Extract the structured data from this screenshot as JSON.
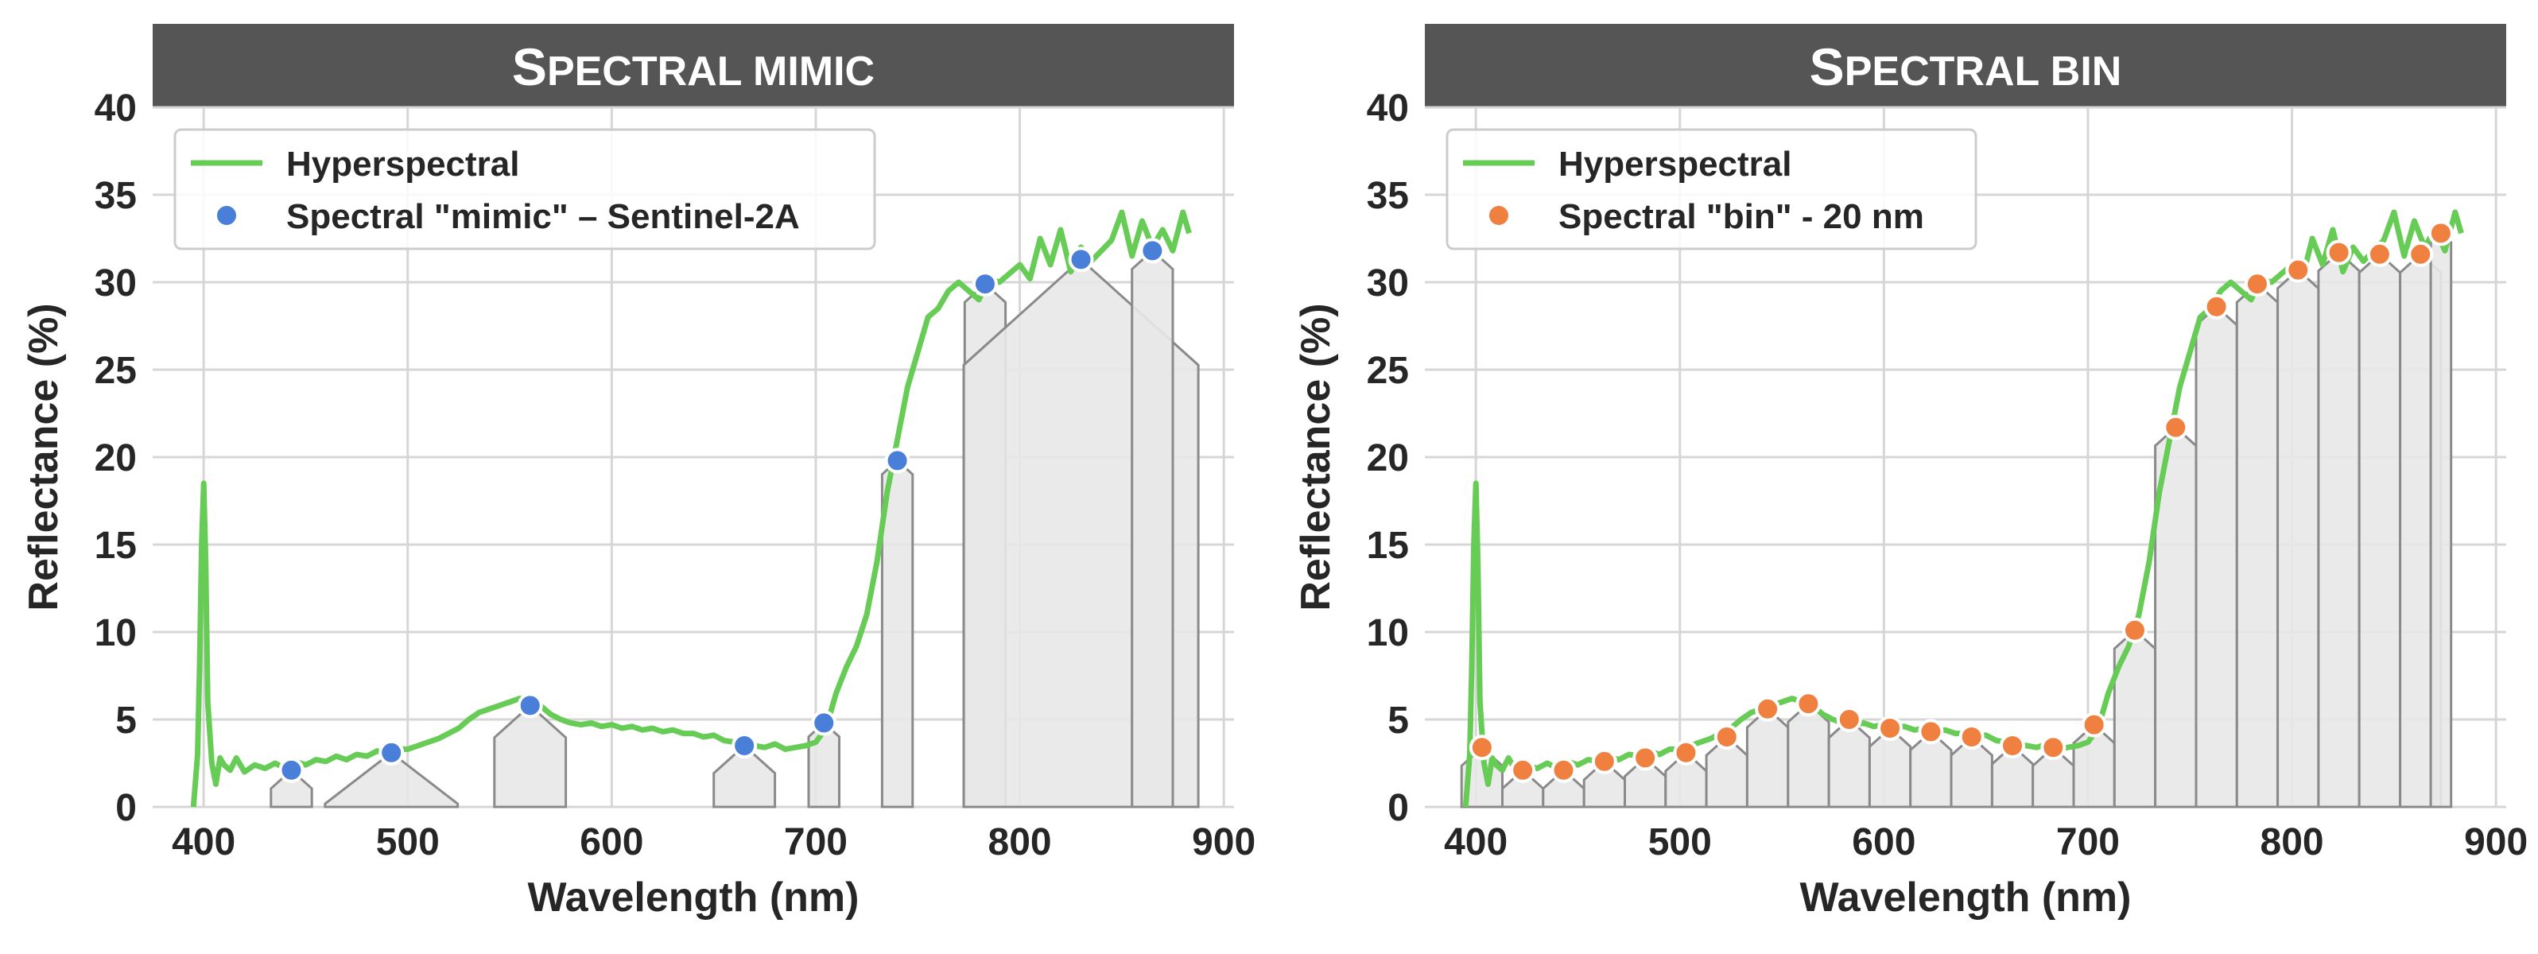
{
  "chart_data": [
    {
      "type": "line",
      "title_first": "S",
      "title_rest": "PECTRAL MIMIC",
      "xlabel": "Wavelength (nm)",
      "ylabel": "Reflectance (%)",
      "xlim": [
        375,
        905
      ],
      "ylim": [
        0,
        40
      ],
      "xticks": [
        400,
        500,
        600,
        700,
        800,
        900
      ],
      "yticks": [
        0,
        5,
        10,
        15,
        20,
        25,
        30,
        35,
        40
      ],
      "grid": true,
      "legend_position": "top-left",
      "legend": [
        "Hyperspectral",
        "Spectral \"mimic\" – Sentinel-2A"
      ],
      "series": [
        {
          "name": "Hyperspectral",
          "color": "#66cc55",
          "x": [
            395,
            397,
            398,
            399,
            400,
            401,
            402,
            404,
            406,
            408,
            410,
            413,
            416,
            420,
            425,
            430,
            435,
            440,
            445,
            450,
            455,
            460,
            465,
            470,
            475,
            480,
            485,
            490,
            495,
            500,
            505,
            510,
            515,
            520,
            525,
            530,
            535,
            540,
            545,
            550,
            555,
            560,
            565,
            570,
            575,
            580,
            585,
            590,
            595,
            600,
            605,
            610,
            615,
            620,
            625,
            630,
            635,
            640,
            645,
            650,
            655,
            660,
            665,
            670,
            675,
            680,
            685,
            690,
            695,
            700,
            705,
            710,
            715,
            720,
            725,
            730,
            735,
            740,
            745,
            750,
            755,
            760,
            765,
            770,
            775,
            780,
            785,
            790,
            795,
            800,
            805,
            810,
            815,
            820,
            825,
            830,
            835,
            840,
            845,
            850,
            855,
            860,
            865,
            870,
            875,
            880,
            883
          ],
          "y": [
            0,
            3,
            8,
            15,
            18.5,
            14,
            6,
            2.5,
            1.3,
            2.8,
            2.4,
            2.1,
            2.8,
            2.0,
            2.4,
            2.2,
            2.5,
            2.2,
            2.6,
            2.4,
            2.7,
            2.6,
            2.9,
            2.7,
            3.0,
            2.9,
            3.2,
            3.0,
            3.3,
            3.3,
            3.5,
            3.7,
            3.9,
            4.2,
            4.5,
            5.0,
            5.4,
            5.6,
            5.8,
            6.0,
            6.2,
            6.0,
            5.8,
            5.3,
            5.0,
            4.8,
            4.7,
            4.8,
            4.6,
            4.7,
            4.5,
            4.6,
            4.4,
            4.5,
            4.3,
            4.4,
            4.2,
            4.2,
            4.0,
            4.1,
            3.8,
            3.7,
            3.6,
            3.5,
            3.4,
            3.6,
            3.3,
            3.4,
            3.5,
            3.7,
            4.5,
            6.5,
            8.0,
            9.2,
            11.0,
            14.0,
            18.0,
            21.0,
            24.0,
            26.0,
            28.0,
            28.5,
            29.5,
            30.0,
            29.5,
            29.0,
            30.2,
            30.0,
            30.5,
            31.0,
            30.2,
            32.5,
            31.0,
            33.0,
            30.6,
            32.0,
            31.2,
            31.8,
            32.4,
            34.0,
            31.5,
            33.5,
            32.0,
            33.0,
            31.8,
            34.0,
            32.8
          ]
        },
        {
          "name": "Spectral \"mimic\" – Sentinel-2A",
          "color": "#4a7fd9",
          "x": [
            443,
            492,
            560,
            665,
            704,
            740,
            783,
            830,
            865
          ],
          "y": [
            2.1,
            3.1,
            5.8,
            3.5,
            4.8,
            19.8,
            29.9,
            31.3,
            31.8
          ]
        }
      ],
      "bands": [
        {
          "center": 443,
          "width": 20
        },
        {
          "center": 492,
          "width": 65
        },
        {
          "center": 560,
          "width": 35
        },
        {
          "center": 665,
          "width": 30
        },
        {
          "center": 704,
          "width": 15
        },
        {
          "center": 740,
          "width": 15
        },
        {
          "center": 783,
          "width": 20
        },
        {
          "center": 830,
          "width": 115
        },
        {
          "center": 865,
          "width": 20
        }
      ]
    },
    {
      "type": "line",
      "title_first": "S",
      "title_rest": "PECTRAL BIN",
      "xlabel": "Wavelength (nm)",
      "ylabel": "Reflectance (%)",
      "xlim": [
        375,
        905
      ],
      "ylim": [
        0,
        40
      ],
      "xticks": [
        400,
        500,
        600,
        700,
        800,
        900
      ],
      "yticks": [
        0,
        5,
        10,
        15,
        20,
        25,
        30,
        35,
        40
      ],
      "grid": true,
      "legend_position": "top-left",
      "legend": [
        "Hyperspectral",
        "Spectral \"bin\" - 20 nm"
      ],
      "series": [
        {
          "name": "Hyperspectral",
          "color": "#66cc55",
          "x": [
            395,
            397,
            398,
            399,
            400,
            401,
            402,
            404,
            406,
            408,
            410,
            413,
            416,
            420,
            425,
            430,
            435,
            440,
            445,
            450,
            455,
            460,
            465,
            470,
            475,
            480,
            485,
            490,
            495,
            500,
            505,
            510,
            515,
            520,
            525,
            530,
            535,
            540,
            545,
            550,
            555,
            560,
            565,
            570,
            575,
            580,
            585,
            590,
            595,
            600,
            605,
            610,
            615,
            620,
            625,
            630,
            635,
            640,
            645,
            650,
            655,
            660,
            665,
            670,
            675,
            680,
            685,
            690,
            695,
            700,
            705,
            710,
            715,
            720,
            725,
            730,
            735,
            740,
            745,
            750,
            755,
            760,
            765,
            770,
            775,
            780,
            785,
            790,
            795,
            800,
            805,
            810,
            815,
            820,
            825,
            830,
            835,
            840,
            845,
            850,
            855,
            860,
            865,
            870,
            875,
            880,
            883
          ],
          "y": [
            0,
            3,
            8,
            15,
            18.5,
            14,
            6,
            2.5,
            1.3,
            2.8,
            2.4,
            2.1,
            2.8,
            2.0,
            2.4,
            2.2,
            2.5,
            2.2,
            2.6,
            2.4,
            2.7,
            2.6,
            2.9,
            2.7,
            3.0,
            2.9,
            3.2,
            3.0,
            3.3,
            3.3,
            3.5,
            3.7,
            3.9,
            4.2,
            4.5,
            5.0,
            5.4,
            5.6,
            5.8,
            6.0,
            6.2,
            6.0,
            5.8,
            5.3,
            5.0,
            4.8,
            4.7,
            4.8,
            4.6,
            4.7,
            4.5,
            4.6,
            4.4,
            4.5,
            4.3,
            4.4,
            4.2,
            4.2,
            4.0,
            4.1,
            3.8,
            3.7,
            3.6,
            3.5,
            3.4,
            3.6,
            3.3,
            3.4,
            3.5,
            3.7,
            4.5,
            6.5,
            8.0,
            9.2,
            11.0,
            14.0,
            18.0,
            21.0,
            24.0,
            26.0,
            28.0,
            28.5,
            29.5,
            30.0,
            29.5,
            29.0,
            30.2,
            30.0,
            30.5,
            31.0,
            30.2,
            32.5,
            31.0,
            33.0,
            30.6,
            32.0,
            31.2,
            31.8,
            32.4,
            34.0,
            31.5,
            33.5,
            32.0,
            33.0,
            31.8,
            34.0,
            32.8
          ]
        },
        {
          "name": "Spectral \"bin\" - 20 nm",
          "color": "#f08040",
          "x": [
            403,
            423,
            443,
            463,
            483,
            503,
            523,
            543,
            563,
            583,
            603,
            623,
            643,
            663,
            683,
            703,
            723,
            743,
            763,
            783,
            803,
            823,
            843,
            863,
            873
          ],
          "y": [
            3.4,
            2.1,
            2.1,
            2.6,
            2.8,
            3.1,
            4.0,
            5.6,
            5.9,
            5.0,
            4.5,
            4.3,
            4.0,
            3.5,
            3.4,
            4.7,
            10.1,
            21.7,
            28.6,
            29.9,
            30.7,
            31.7,
            31.6,
            31.6,
            32.8
          ]
        }
      ],
      "bands": [
        {
          "center": 403,
          "width": 20
        },
        {
          "center": 423,
          "width": 20
        },
        {
          "center": 443,
          "width": 20
        },
        {
          "center": 463,
          "width": 20
        },
        {
          "center": 483,
          "width": 20
        },
        {
          "center": 503,
          "width": 20
        },
        {
          "center": 523,
          "width": 20
        },
        {
          "center": 543,
          "width": 20
        },
        {
          "center": 563,
          "width": 20
        },
        {
          "center": 583,
          "width": 20
        },
        {
          "center": 603,
          "width": 20
        },
        {
          "center": 623,
          "width": 20
        },
        {
          "center": 643,
          "width": 20
        },
        {
          "center": 663,
          "width": 20
        },
        {
          "center": 683,
          "width": 20
        },
        {
          "center": 703,
          "width": 20
        },
        {
          "center": 723,
          "width": 20
        },
        {
          "center": 743,
          "width": 20
        },
        {
          "center": 763,
          "width": 20
        },
        {
          "center": 783,
          "width": 20
        },
        {
          "center": 803,
          "width": 20
        },
        {
          "center": 823,
          "width": 20
        },
        {
          "center": 843,
          "width": 20
        },
        {
          "center": 863,
          "width": 20
        },
        {
          "center": 873,
          "width": 10
        }
      ]
    }
  ]
}
